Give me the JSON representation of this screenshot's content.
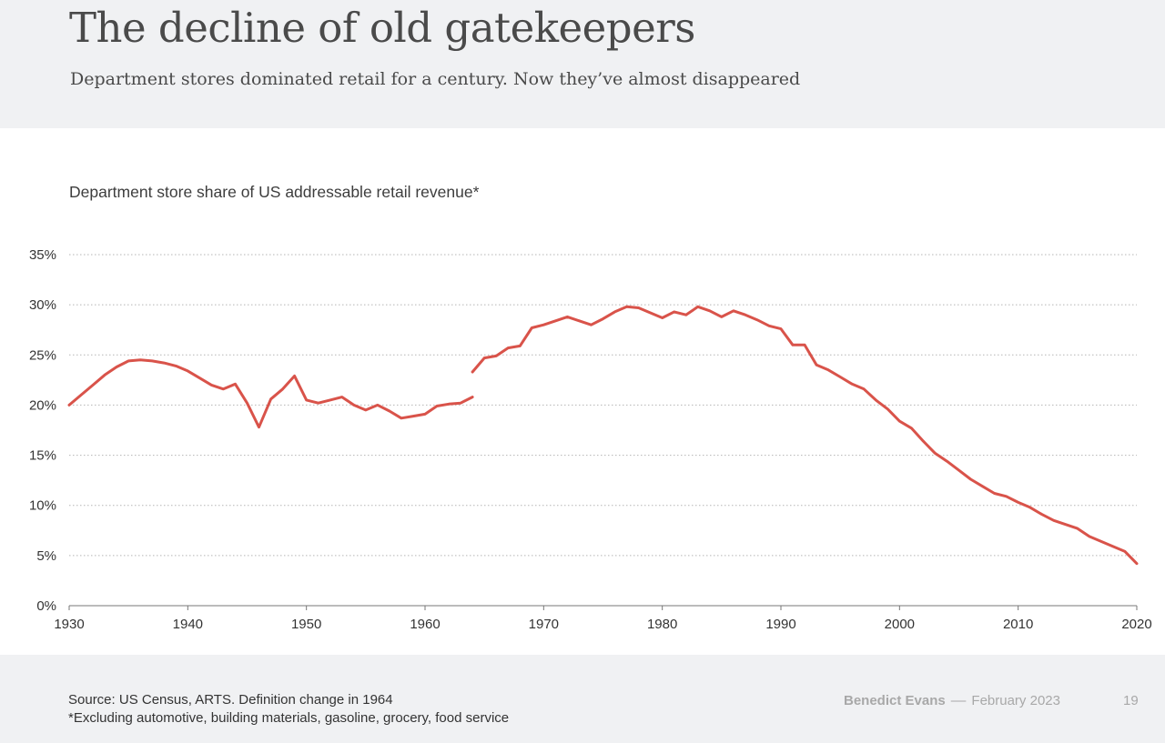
{
  "header": {
    "title": "The decline of old gatekeepers",
    "subtitle": "Department stores dominated retail for a century. Now they’ve almost disappeared"
  },
  "chart_data": {
    "type": "line",
    "title": "Department store share of US addressable retail revenue*",
    "xlabel": "",
    "ylabel": "",
    "xlim": [
      1930,
      2020
    ],
    "ylim": [
      0,
      35
    ],
    "x_ticks": [
      "1930",
      "1940",
      "1950",
      "1960",
      "1970",
      "1980",
      "1990",
      "2000",
      "2010",
      "2020"
    ],
    "y_ticks": [
      "0%",
      "5%",
      "10%",
      "15%",
      "20%",
      "25%",
      "30%",
      "35%"
    ],
    "grid": "horizontal dotted",
    "line_color": "#d9534a",
    "series": [
      {
        "segment": 1,
        "x": [
          1930,
          1931,
          1932,
          1933,
          1934,
          1935,
          1936,
          1937,
          1938,
          1939,
          1940,
          1941,
          1942,
          1943,
          1944,
          1945,
          1946,
          1947,
          1948,
          1949,
          1950,
          1951,
          1952,
          1953,
          1954,
          1955,
          1956,
          1957,
          1958,
          1959,
          1960,
          1961,
          1962,
          1963,
          1964
        ],
        "y": [
          20.0,
          21.0,
          22.0,
          23.0,
          23.8,
          24.4,
          24.5,
          24.4,
          24.2,
          23.9,
          23.4,
          22.7,
          22.0,
          21.6,
          22.1,
          20.2,
          17.8,
          20.6,
          21.6,
          22.9,
          20.5,
          20.2,
          20.5,
          20.8,
          20.0,
          19.5,
          20.0,
          19.4,
          18.7,
          18.9,
          19.1,
          19.9,
          20.1,
          20.2,
          20.8
        ]
      },
      {
        "segment": 2,
        "x": [
          1964,
          1965,
          1966,
          1967,
          1968,
          1969,
          1970,
          1971,
          1972,
          1973,
          1974,
          1975,
          1976,
          1977,
          1978,
          1979,
          1980,
          1981,
          1982,
          1983,
          1984,
          1985,
          1986,
          1987,
          1988,
          1989,
          1990,
          1991,
          1992,
          1993,
          1994,
          1995,
          1996,
          1997,
          1998,
          1999,
          2000,
          2001,
          2002,
          2003,
          2004,
          2005,
          2006,
          2007,
          2008,
          2009,
          2010,
          2011,
          2012,
          2013,
          2014,
          2015,
          2016,
          2017,
          2018,
          2019,
          2020
        ],
        "y": [
          23.3,
          24.7,
          24.9,
          25.7,
          25.9,
          27.7,
          28.0,
          28.4,
          28.8,
          28.4,
          28.0,
          28.6,
          29.3,
          29.8,
          29.7,
          29.2,
          28.7,
          29.3,
          29.0,
          29.8,
          29.4,
          28.8,
          29.4,
          29.0,
          28.5,
          27.9,
          27.6,
          26.0,
          26.0,
          24.0,
          23.5,
          22.8,
          22.1,
          21.6,
          20.5,
          19.6,
          18.4,
          17.7,
          16.4,
          15.2,
          14.4,
          13.5,
          12.6,
          11.9,
          11.2,
          10.9,
          10.3,
          9.8,
          9.1,
          8.5,
          8.1,
          7.7,
          6.9,
          6.4,
          5.9,
          5.4,
          4.2
        ]
      }
    ]
  },
  "footer": {
    "source": "Source: US Census, ARTS. Definition change in 1964",
    "note": "*Excluding automotive, building materials, gasoline, grocery, food service",
    "author": "Benedict Evans",
    "dash": "––",
    "date": "February 2023",
    "page_number": "19"
  }
}
